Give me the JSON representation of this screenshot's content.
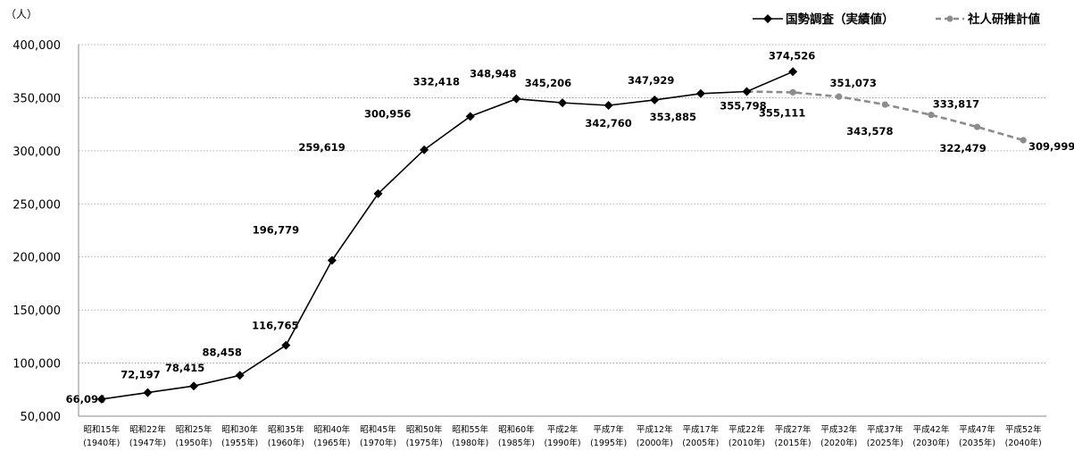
{
  "chart_data": {
    "type": "line",
    "y_unit": "（人）",
    "ylim": [
      50000,
      400000
    ],
    "y_ticks": [
      "50,000",
      "100,000",
      "150,000",
      "200,000",
      "250,000",
      "300,000",
      "350,000",
      "400,000"
    ],
    "y_tick_values": [
      50000,
      100000,
      150000,
      200000,
      250000,
      300000,
      350000,
      400000
    ],
    "grid": "horizontal dotted",
    "legend_position": "top-right",
    "categories": [
      {
        "era": "昭和15年",
        "year": "(1940年)"
      },
      {
        "era": "昭和22年",
        "year": "(1947年)"
      },
      {
        "era": "昭和25年",
        "year": "(1950年)"
      },
      {
        "era": "昭和30年",
        "year": "(1955年)"
      },
      {
        "era": "昭和35年",
        "year": "(1960年)"
      },
      {
        "era": "昭和40年",
        "year": "(1965年)"
      },
      {
        "era": "昭和45年",
        "year": "(1970年)"
      },
      {
        "era": "昭和50年",
        "year": "(1975年)"
      },
      {
        "era": "昭和55年",
        "year": "(1980年)"
      },
      {
        "era": "昭和60年",
        "year": "(1985年)"
      },
      {
        "era": "平成2年",
        "year": "(1990年)"
      },
      {
        "era": "平成7年",
        "year": "(1995年)"
      },
      {
        "era": "平成12年",
        "year": "(2000年)"
      },
      {
        "era": "平成17年",
        "year": "(2005年)"
      },
      {
        "era": "平成22年",
        "year": "(2010年)"
      },
      {
        "era": "平成27年",
        "year": "(2015年)"
      },
      {
        "era": "平成32年",
        "year": "(2020年)"
      },
      {
        "era": "平成37年",
        "year": "(2025年)"
      },
      {
        "era": "平成42年",
        "year": "(2030年)"
      },
      {
        "era": "平成47年",
        "year": "(2035年)"
      },
      {
        "era": "平成52年",
        "year": "(2040年)"
      }
    ],
    "series": [
      {
        "name": "国勢調査（実績値）",
        "color": "#000000",
        "style": "solid",
        "marker": "diamond",
        "values": [
          66094,
          72197,
          78415,
          88458,
          116765,
          196779,
          259619,
          300956,
          332418,
          348948,
          345206,
          342760,
          347929,
          353885,
          355798,
          374526,
          null,
          null,
          null,
          null,
          null
        ],
        "labels": [
          "66,094",
          "72,197",
          "78,415",
          "88,458",
          "116,765",
          "196,779",
          "259,619",
          "300,956",
          "332,418",
          "348,948",
          "345,206",
          "342,760",
          "347,929",
          "353,885",
          "355,798",
          "374,526",
          "",
          "",
          "",
          "",
          ""
        ]
      },
      {
        "name": "社人研推計値",
        "color": "#8c8c8c",
        "style": "dashed",
        "marker": "circle",
        "values": [
          null,
          null,
          null,
          null,
          null,
          null,
          null,
          null,
          null,
          null,
          null,
          null,
          null,
          null,
          355798,
          355111,
          351073,
          343578,
          333817,
          322479,
          309999
        ],
        "labels": [
          "",
          "",
          "",
          "",
          "",
          "",
          "",
          "",
          "",
          "",
          "",
          "",
          "",
          "",
          "",
          "355,111",
          "351,073",
          "343,578",
          "333,817",
          "322,479",
          "309,999"
        ]
      }
    ]
  }
}
